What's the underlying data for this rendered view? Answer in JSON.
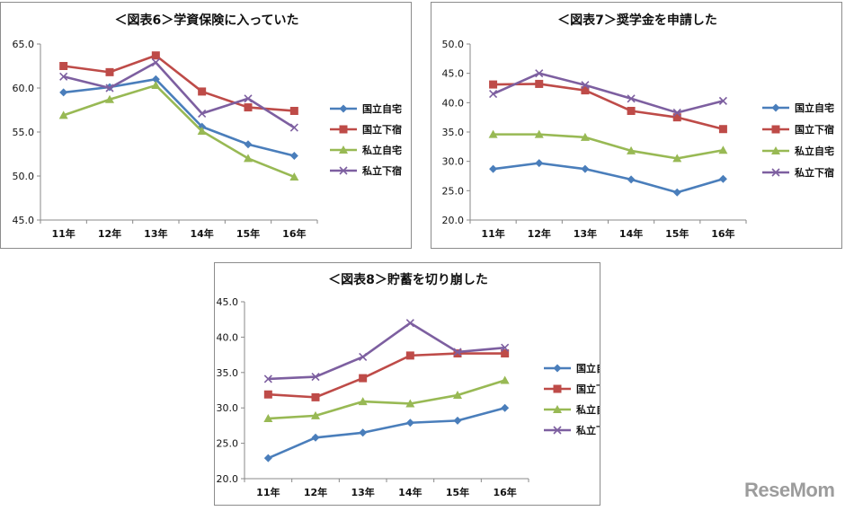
{
  "brand": {
    "watermark": "ReseMom"
  },
  "chart_data": [
    {
      "type": "line",
      "title": "＜図表6＞学資保険に入っていた",
      "categories": [
        "11年",
        "12年",
        "13年",
        "14年",
        "15年",
        "16年"
      ],
      "ylim": [
        45,
        65
      ],
      "yticks": [
        "45.0",
        "50.0",
        "55.0",
        "60.0",
        "65.0"
      ],
      "ytick_values": [
        45,
        50,
        55,
        60,
        65
      ],
      "series": [
        {
          "name": "国立自宅",
          "color": "#4a7ebb",
          "marker": "diamond",
          "values": [
            59.5,
            60.1,
            61.0,
            55.6,
            53.6,
            52.3
          ]
        },
        {
          "name": "国立下宿",
          "color": "#be4b48",
          "marker": "square",
          "values": [
            62.5,
            61.8,
            63.7,
            59.6,
            57.8,
            57.4
          ]
        },
        {
          "name": "私立自宅",
          "color": "#98b954",
          "marker": "triangle",
          "values": [
            56.9,
            58.7,
            60.3,
            55.1,
            52.0,
            49.9
          ]
        },
        {
          "name": "私立下宿",
          "color": "#7d5fa0",
          "marker": "x",
          "values": [
            61.3,
            60.0,
            62.9,
            57.1,
            58.8,
            55.5
          ]
        }
      ]
    },
    {
      "type": "line",
      "title": "＜図表7＞奨学金を申請した",
      "categories": [
        "11年",
        "12年",
        "13年",
        "14年",
        "15年",
        "16年"
      ],
      "ylim": [
        20,
        50
      ],
      "yticks": [
        "20.0",
        "25.0",
        "30.0",
        "35.0",
        "40.0",
        "45.0",
        "50.0"
      ],
      "ytick_values": [
        20,
        25,
        30,
        35,
        40,
        45,
        50
      ],
      "series": [
        {
          "name": "国立自宅",
          "color": "#4a7ebb",
          "marker": "diamond",
          "values": [
            28.7,
            29.7,
            28.7,
            26.9,
            24.7,
            27.0
          ]
        },
        {
          "name": "国立下宿",
          "color": "#be4b48",
          "marker": "square",
          "values": [
            43.1,
            43.2,
            42.1,
            38.6,
            37.5,
            35.5
          ]
        },
        {
          "name": "私立自宅",
          "color": "#98b954",
          "marker": "triangle",
          "values": [
            34.6,
            34.6,
            34.1,
            31.8,
            30.5,
            31.9
          ]
        },
        {
          "name": "私立下宿",
          "color": "#7d5fa0",
          "marker": "x",
          "values": [
            41.5,
            45.0,
            43.0,
            40.7,
            38.3,
            40.3
          ]
        }
      ]
    },
    {
      "type": "line",
      "title": "＜図表8＞貯蓄を切り崩した",
      "categories": [
        "11年",
        "12年",
        "13年",
        "14年",
        "15年",
        "16年"
      ],
      "ylim": [
        20,
        45
      ],
      "yticks": [
        "20.0",
        "25.0",
        "30.0",
        "35.0",
        "40.0",
        "45.0"
      ],
      "ytick_values": [
        20,
        25,
        30,
        35,
        40,
        45
      ],
      "series": [
        {
          "name": "国立自宅",
          "color": "#4a7ebb",
          "marker": "diamond",
          "values": [
            22.9,
            25.8,
            26.5,
            27.9,
            28.2,
            30.0
          ]
        },
        {
          "name": "国立下宿",
          "color": "#be4b48",
          "marker": "square",
          "values": [
            31.9,
            31.5,
            34.2,
            37.4,
            37.7,
            37.7
          ]
        },
        {
          "name": "私立自宅",
          "color": "#98b954",
          "marker": "triangle",
          "values": [
            28.5,
            28.9,
            30.9,
            30.6,
            31.8,
            33.9
          ]
        },
        {
          "name": "私立下宿",
          "color": "#7d5fa0",
          "marker": "x",
          "values": [
            34.1,
            34.4,
            37.2,
            42.0,
            37.9,
            38.5
          ]
        }
      ]
    }
  ]
}
